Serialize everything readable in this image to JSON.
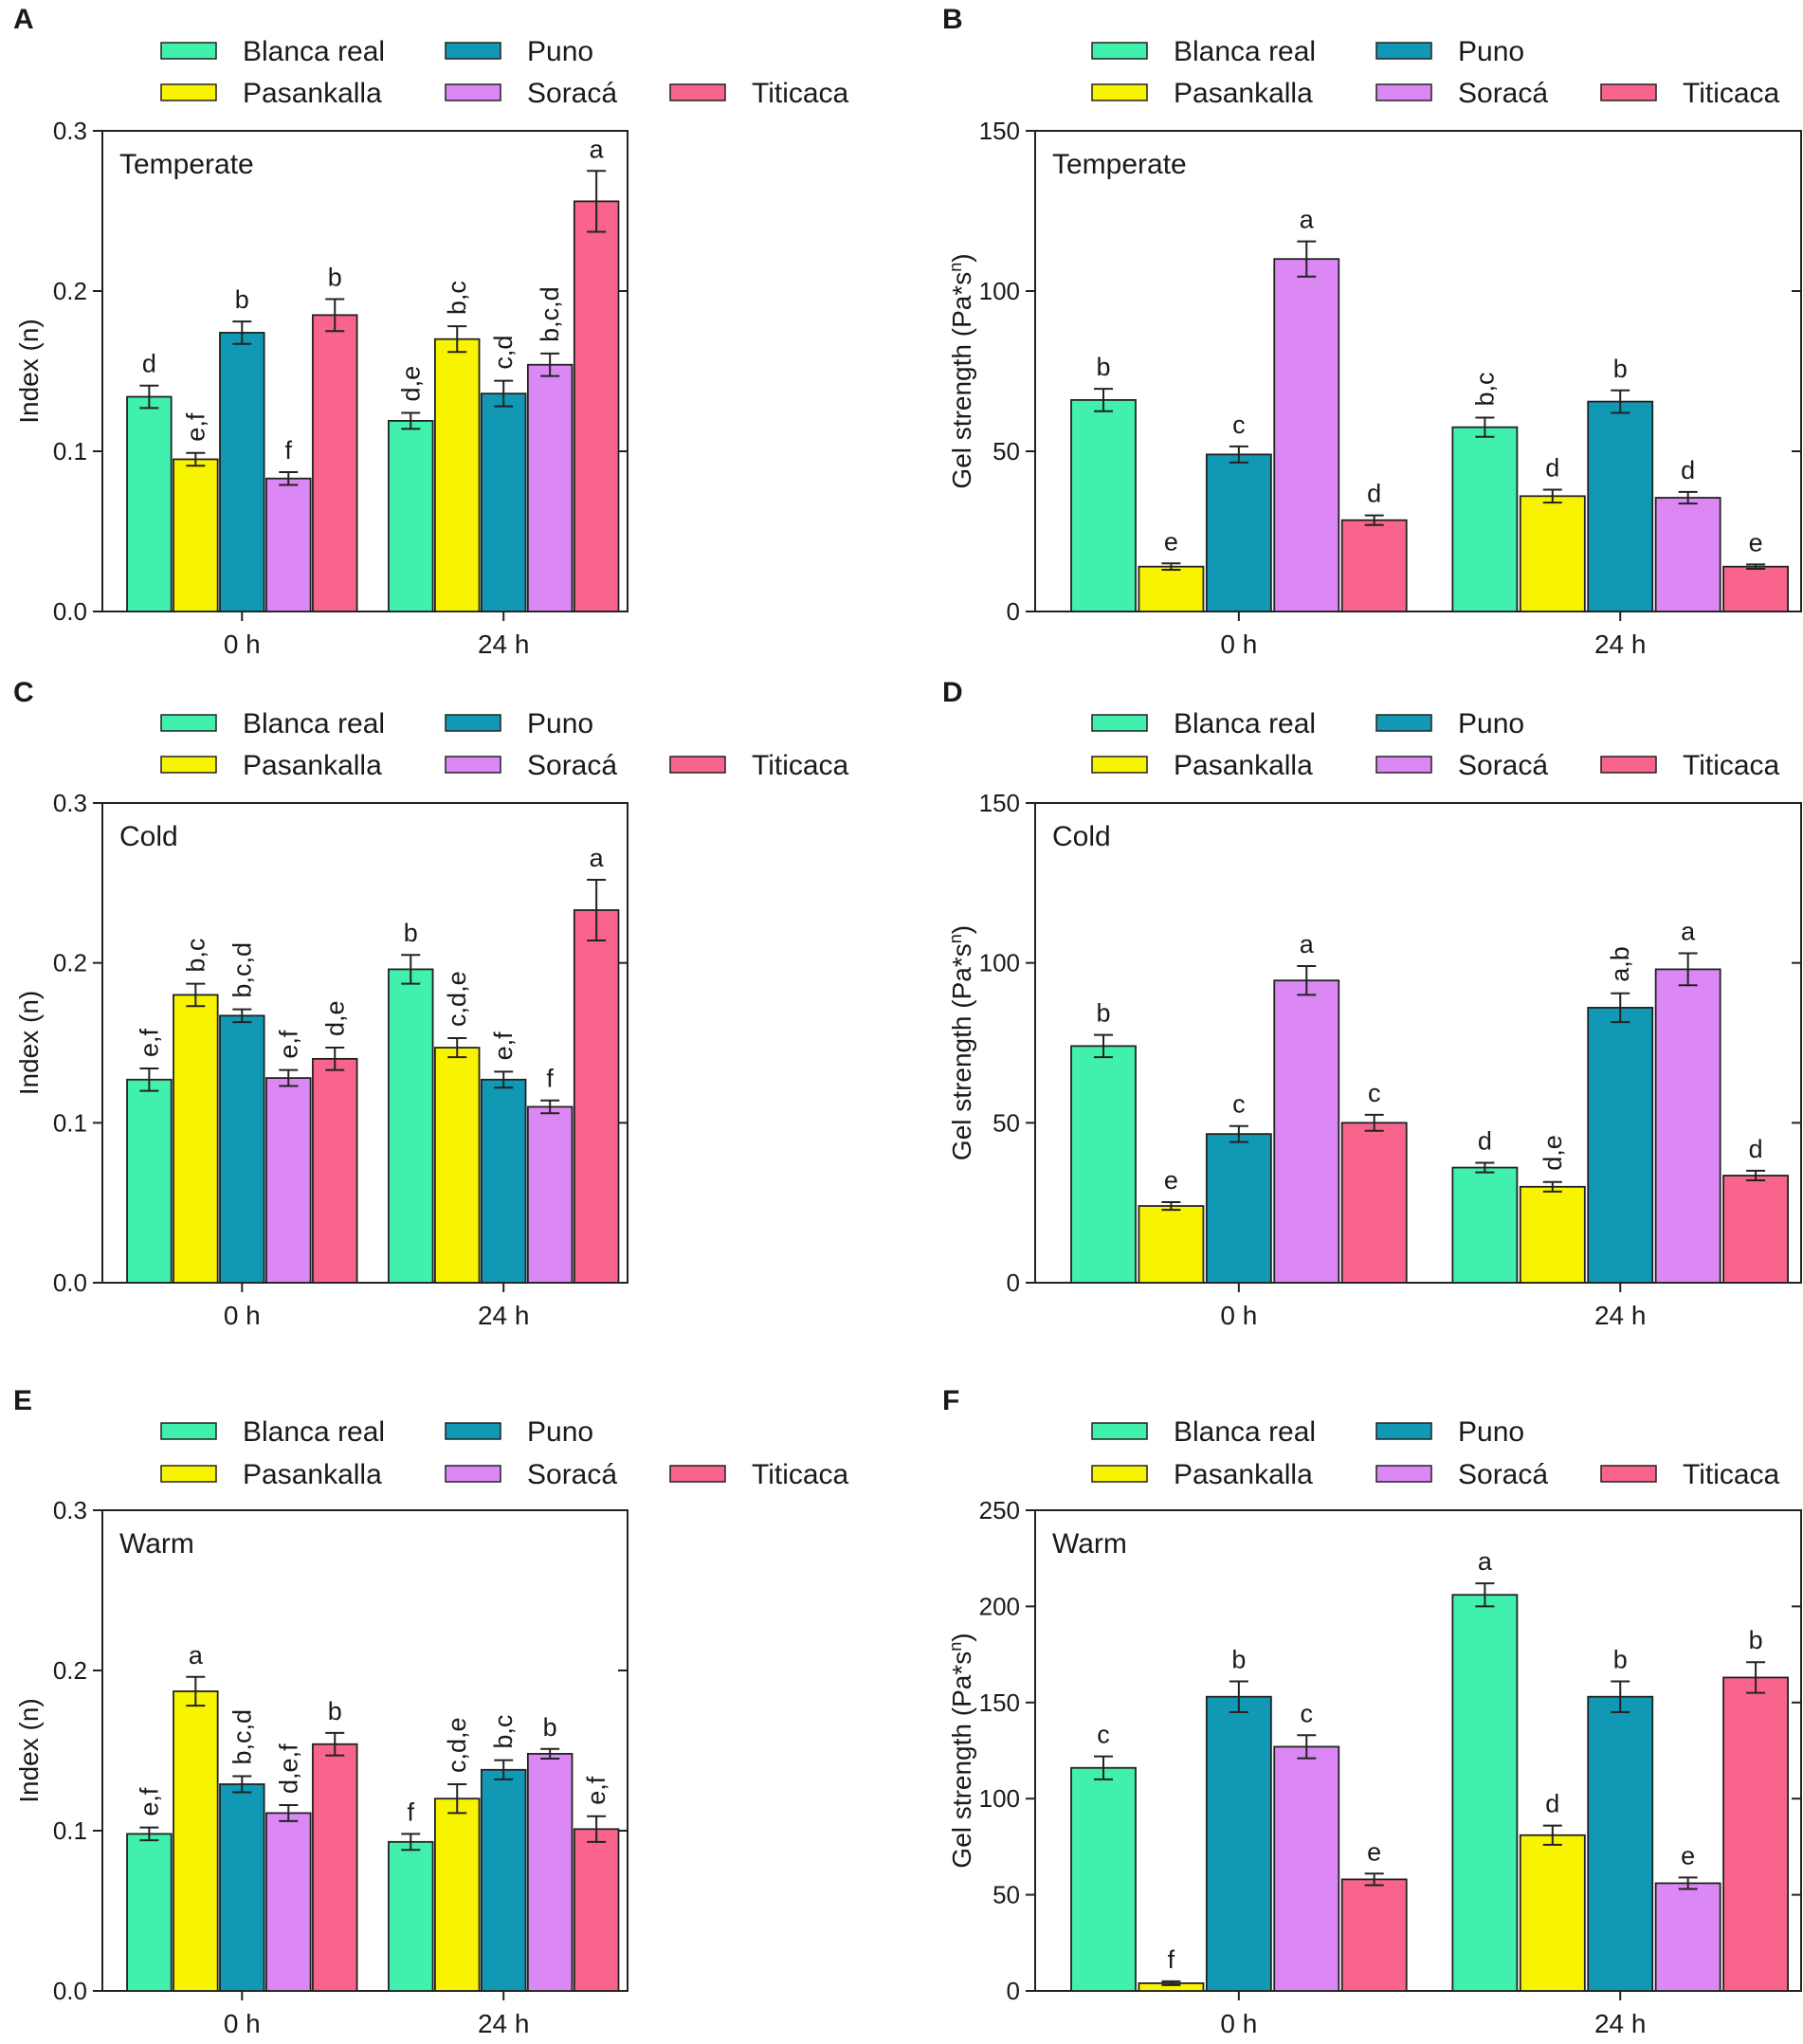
{
  "legend": {
    "series": [
      {
        "name": "Blanca real",
        "color": "#40f0ac"
      },
      {
        "name": "Pasankalla",
        "color": "#f8f400"
      },
      {
        "name": "Puno",
        "color": "#1098b4"
      },
      {
        "name": "Soracá",
        "color": "#dc88f4"
      },
      {
        "name": "Titicaca",
        "color": "#f8648c"
      }
    ]
  },
  "chart_data": [
    {
      "panel": "A",
      "type": "bar",
      "condition": "Temperate",
      "ylabel": "Index (n)",
      "ylim": [
        0,
        0.3
      ],
      "yticks": [
        "0.0",
        "0.1",
        "0.2",
        "0.3"
      ],
      "ytick_values": [
        0,
        0.1,
        0.2,
        0.3
      ],
      "categories": [
        "0 h",
        "24 h"
      ],
      "series": [
        {
          "name": "Blanca real",
          "values": [
            0.134,
            0.119
          ],
          "errors": [
            0.007,
            0.005
          ],
          "letters": [
            "d",
            "d,e"
          ]
        },
        {
          "name": "Pasankalla",
          "values": [
            0.095,
            0.17
          ],
          "errors": [
            0.004,
            0.008
          ],
          "letters": [
            "e,f",
            "b,c"
          ]
        },
        {
          "name": "Puno",
          "values": [
            0.174,
            0.136
          ],
          "errors": [
            0.007,
            0.008
          ],
          "letters": [
            "b",
            "c,d"
          ]
        },
        {
          "name": "Soracá",
          "values": [
            0.083,
            0.154
          ],
          "errors": [
            0.004,
            0.007
          ],
          "letters": [
            "f",
            "b,c,d"
          ]
        },
        {
          "name": "Titicaca",
          "values": [
            0.185,
            0.256
          ],
          "errors": [
            0.01,
            0.019
          ],
          "letters": [
            "b",
            "a"
          ]
        }
      ]
    },
    {
      "panel": "B",
      "type": "bar",
      "condition": "Temperate",
      "ylabel": "Gel strength  (Pa*s",
      "ylabel_sup": "n",
      "ylabel_end": ")",
      "ylim": [
        0,
        150
      ],
      "yticks": [
        "0",
        "50",
        "100",
        "150"
      ],
      "ytick_values": [
        0,
        50,
        100,
        150
      ],
      "categories": [
        "0 h",
        "24 h"
      ],
      "series": [
        {
          "name": "Blanca real",
          "values": [
            66,
            57.5
          ],
          "errors": [
            3.5,
            3.0
          ],
          "letters": [
            "b",
            "b,c"
          ]
        },
        {
          "name": "Pasankalla",
          "values": [
            14,
            36
          ],
          "errors": [
            1.0,
            2.0
          ],
          "letters": [
            "e",
            "d"
          ]
        },
        {
          "name": "Puno",
          "values": [
            49,
            65.5
          ],
          "errors": [
            2.5,
            3.5
          ],
          "letters": [
            "c",
            "b"
          ]
        },
        {
          "name": "Soracá",
          "values": [
            110,
            35.5
          ],
          "errors": [
            5.5,
            1.8
          ],
          "letters": [
            "a",
            "d"
          ]
        },
        {
          "name": "Titicaca",
          "values": [
            28.5,
            14
          ],
          "errors": [
            1.5,
            0.7
          ],
          "letters": [
            "d",
            "e"
          ]
        }
      ]
    },
    {
      "panel": "C",
      "type": "bar",
      "condition": "Cold",
      "ylabel": "Index (n)",
      "ylim": [
        0,
        0.3
      ],
      "yticks": [
        "0.0",
        "0.1",
        "0.2",
        "0.3"
      ],
      "ytick_values": [
        0,
        0.1,
        0.2,
        0.3
      ],
      "categories": [
        "0 h",
        "24 h"
      ],
      "series": [
        {
          "name": "Blanca real",
          "values": [
            0.127,
            0.196
          ],
          "errors": [
            0.007,
            0.009
          ],
          "letters": [
            "e,f",
            "b"
          ]
        },
        {
          "name": "Pasankalla",
          "values": [
            0.18,
            0.147
          ],
          "errors": [
            0.007,
            0.006
          ],
          "letters": [
            "b,c",
            "c,d,e"
          ]
        },
        {
          "name": "Puno",
          "values": [
            0.167,
            0.127
          ],
          "errors": [
            0.004,
            0.005
          ],
          "letters": [
            "b,c,d",
            "e,f"
          ]
        },
        {
          "name": "Soracá",
          "values": [
            0.128,
            0.11
          ],
          "errors": [
            0.005,
            0.004
          ],
          "letters": [
            "e,f",
            "f"
          ]
        },
        {
          "name": "Titicaca",
          "values": [
            0.14,
            0.233
          ],
          "errors": [
            0.007,
            0.019
          ],
          "letters": [
            "d,e",
            "a"
          ]
        }
      ]
    },
    {
      "panel": "D",
      "type": "bar",
      "condition": "Cold",
      "ylabel": "Gel strength  (Pa*s",
      "ylabel_sup": "n",
      "ylabel_end": ")",
      "ylim": [
        0,
        150
      ],
      "yticks": [
        "0",
        "50",
        "100",
        "150"
      ],
      "ytick_values": [
        0,
        50,
        100,
        150
      ],
      "categories": [
        "0 h",
        "24 h"
      ],
      "series": [
        {
          "name": "Blanca real",
          "values": [
            74,
            36
          ],
          "errors": [
            3.5,
            1.5
          ],
          "letters": [
            "b",
            "d"
          ]
        },
        {
          "name": "Pasankalla",
          "values": [
            24,
            30
          ],
          "errors": [
            1.2,
            1.5
          ],
          "letters": [
            "e",
            "d,e"
          ]
        },
        {
          "name": "Puno",
          "values": [
            46.5,
            86
          ],
          "errors": [
            2.5,
            4.5
          ],
          "letters": [
            "c",
            "a,b"
          ]
        },
        {
          "name": "Soracá",
          "values": [
            94.5,
            98
          ],
          "errors": [
            4.5,
            5.0
          ],
          "letters": [
            "a",
            "a"
          ]
        },
        {
          "name": "Titicaca",
          "values": [
            50,
            33.5
          ],
          "errors": [
            2.5,
            1.5
          ],
          "letters": [
            "c",
            "d"
          ]
        }
      ]
    },
    {
      "panel": "E",
      "type": "bar",
      "condition": "Warm",
      "ylabel": "Index (n)",
      "ylim": [
        0,
        0.3
      ],
      "yticks": [
        "0.0",
        "0.1",
        "0.2",
        "0.3"
      ],
      "ytick_values": [
        0,
        0.1,
        0.2,
        0.3
      ],
      "categories": [
        "0 h",
        "24 h"
      ],
      "series": [
        {
          "name": "Blanca real",
          "values": [
            0.098,
            0.093
          ],
          "errors": [
            0.004,
            0.005
          ],
          "letters": [
            "e,f",
            "f"
          ]
        },
        {
          "name": "Pasankalla",
          "values": [
            0.187,
            0.12
          ],
          "errors": [
            0.009,
            0.009
          ],
          "letters": [
            "a",
            "c,d,e"
          ]
        },
        {
          "name": "Puno",
          "values": [
            0.129,
            0.138
          ],
          "errors": [
            0.005,
            0.006
          ],
          "letters": [
            "b,c,d",
            "b,c"
          ]
        },
        {
          "name": "Soracá",
          "values": [
            0.111,
            0.148
          ],
          "errors": [
            0.005,
            0.003
          ],
          "letters": [
            "d,e,f",
            "b"
          ]
        },
        {
          "name": "Titicaca",
          "values": [
            0.154,
            0.101
          ],
          "errors": [
            0.007,
            0.008
          ],
          "letters": [
            "b",
            "e,f"
          ]
        }
      ]
    },
    {
      "panel": "F",
      "type": "bar",
      "condition": "Warm",
      "ylabel": "Gel strength  (Pa*s",
      "ylabel_sup": "n",
      "ylabel_end": ")",
      "ylim": [
        0,
        250
      ],
      "yticks": [
        "0",
        "50",
        "100",
        "150",
        "200",
        "250"
      ],
      "ytick_values": [
        0,
        50,
        100,
        150,
        200,
        250
      ],
      "categories": [
        "0 h",
        "24 h"
      ],
      "series": [
        {
          "name": "Blanca real",
          "values": [
            116,
            206
          ],
          "errors": [
            6,
            6
          ],
          "letters": [
            "c",
            "a"
          ]
        },
        {
          "name": "Pasankalla",
          "values": [
            4,
            81
          ],
          "errors": [
            1,
            5
          ],
          "letters": [
            "f",
            "d"
          ]
        },
        {
          "name": "Puno",
          "values": [
            153,
            153
          ],
          "errors": [
            8,
            8
          ],
          "letters": [
            "b",
            "b"
          ]
        },
        {
          "name": "Soracá",
          "values": [
            127,
            56
          ],
          "errors": [
            6,
            3
          ],
          "letters": [
            "c",
            "e"
          ]
        },
        {
          "name": "Titicaca",
          "values": [
            58,
            163
          ],
          "errors": [
            3,
            8
          ],
          "letters": [
            "e",
            "b"
          ]
        }
      ]
    }
  ]
}
